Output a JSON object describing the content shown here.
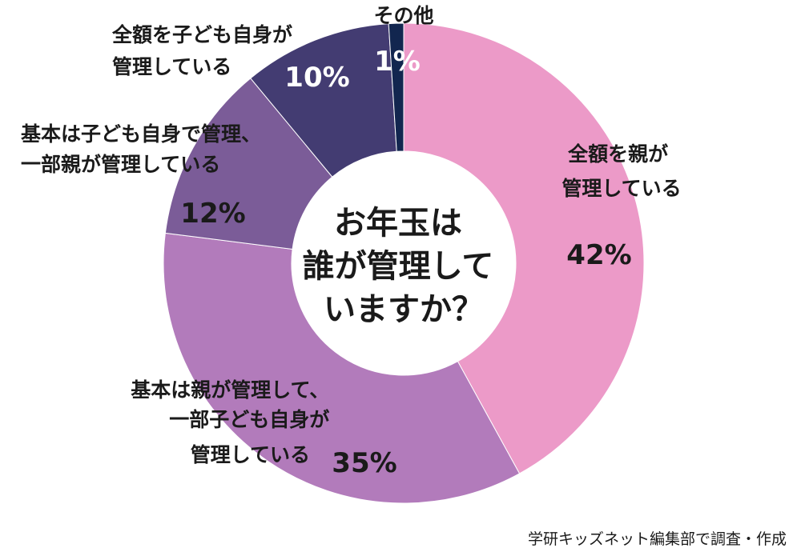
{
  "chart_data": {
    "type": "pie",
    "center_text": [
      "お年玉は",
      "誰が管理して",
      "いますか？"
    ],
    "source": "学研キッズネット編集部で調査・作成",
    "slices": [
      {
        "label": [
          "全額を親が",
          "管理している"
        ],
        "value": 42,
        "value_label": "42%",
        "color": "#ec9ac8"
      },
      {
        "label": [
          "基本は親が管理して、",
          "一部子ども自身が",
          "管理している"
        ],
        "value": 35,
        "value_label": "35%",
        "color": "#b27bbb"
      },
      {
        "label": [
          "基本は子ども自身で管理、",
          "一部親が管理している"
        ],
        "value": 12,
        "value_label": "12%",
        "color": "#7b5c98"
      },
      {
        "label": [
          "全額を子ども自身が",
          "管理している"
        ],
        "value": 10,
        "value_label": "10%",
        "color": "#433c72"
      },
      {
        "label": [
          "その他"
        ],
        "value": 1,
        "value_label": "1%",
        "color": "#12264f"
      }
    ]
  }
}
